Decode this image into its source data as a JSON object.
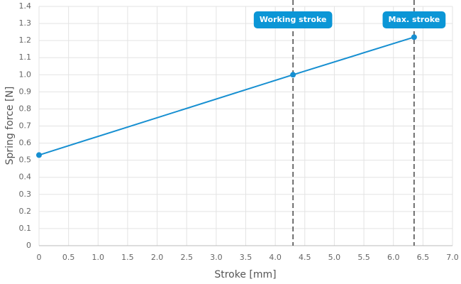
{
  "chart_data": {
    "type": "line",
    "x_label": "Stroke [mm]",
    "y_label": "Spring force [N]",
    "x": [
      0,
      4.3,
      6.35
    ],
    "values": [
      0.53,
      1.0,
      1.22
    ],
    "color": "#168fd1",
    "xlim": [
      0,
      7
    ],
    "xticks": [
      0,
      0.5,
      {
        "value": 1,
        "label": "1.0"
      },
      1.5,
      {
        "value": 2,
        "label": "2.0"
      },
      2.5,
      {
        "value": 3,
        "label": "3.0"
      },
      3.5,
      {
        "value": 4,
        "label": "4.0"
      },
      4.5,
      {
        "value": 5,
        "label": "5.0"
      },
      5.5,
      {
        "value": 6,
        "label": "6.0"
      },
      6.5,
      {
        "value": 7,
        "label": "7.0"
      }
    ],
    "ylim": [
      0,
      1.4
    ],
    "yticks": [
      0,
      0.1,
      0.2,
      0.3,
      0.4,
      0.5,
      0.6,
      0.7,
      0.8,
      0.9,
      {
        "value": 1,
        "label": "1.0"
      },
      1.1,
      1.2,
      1.3,
      1.4
    ],
    "grid": true,
    "annotations": [
      {
        "label": "Working stroke",
        "x": 4.3
      },
      {
        "label": "Max. stroke",
        "x": 6.35
      }
    ],
    "annotation_color": "#0b96d6"
  }
}
